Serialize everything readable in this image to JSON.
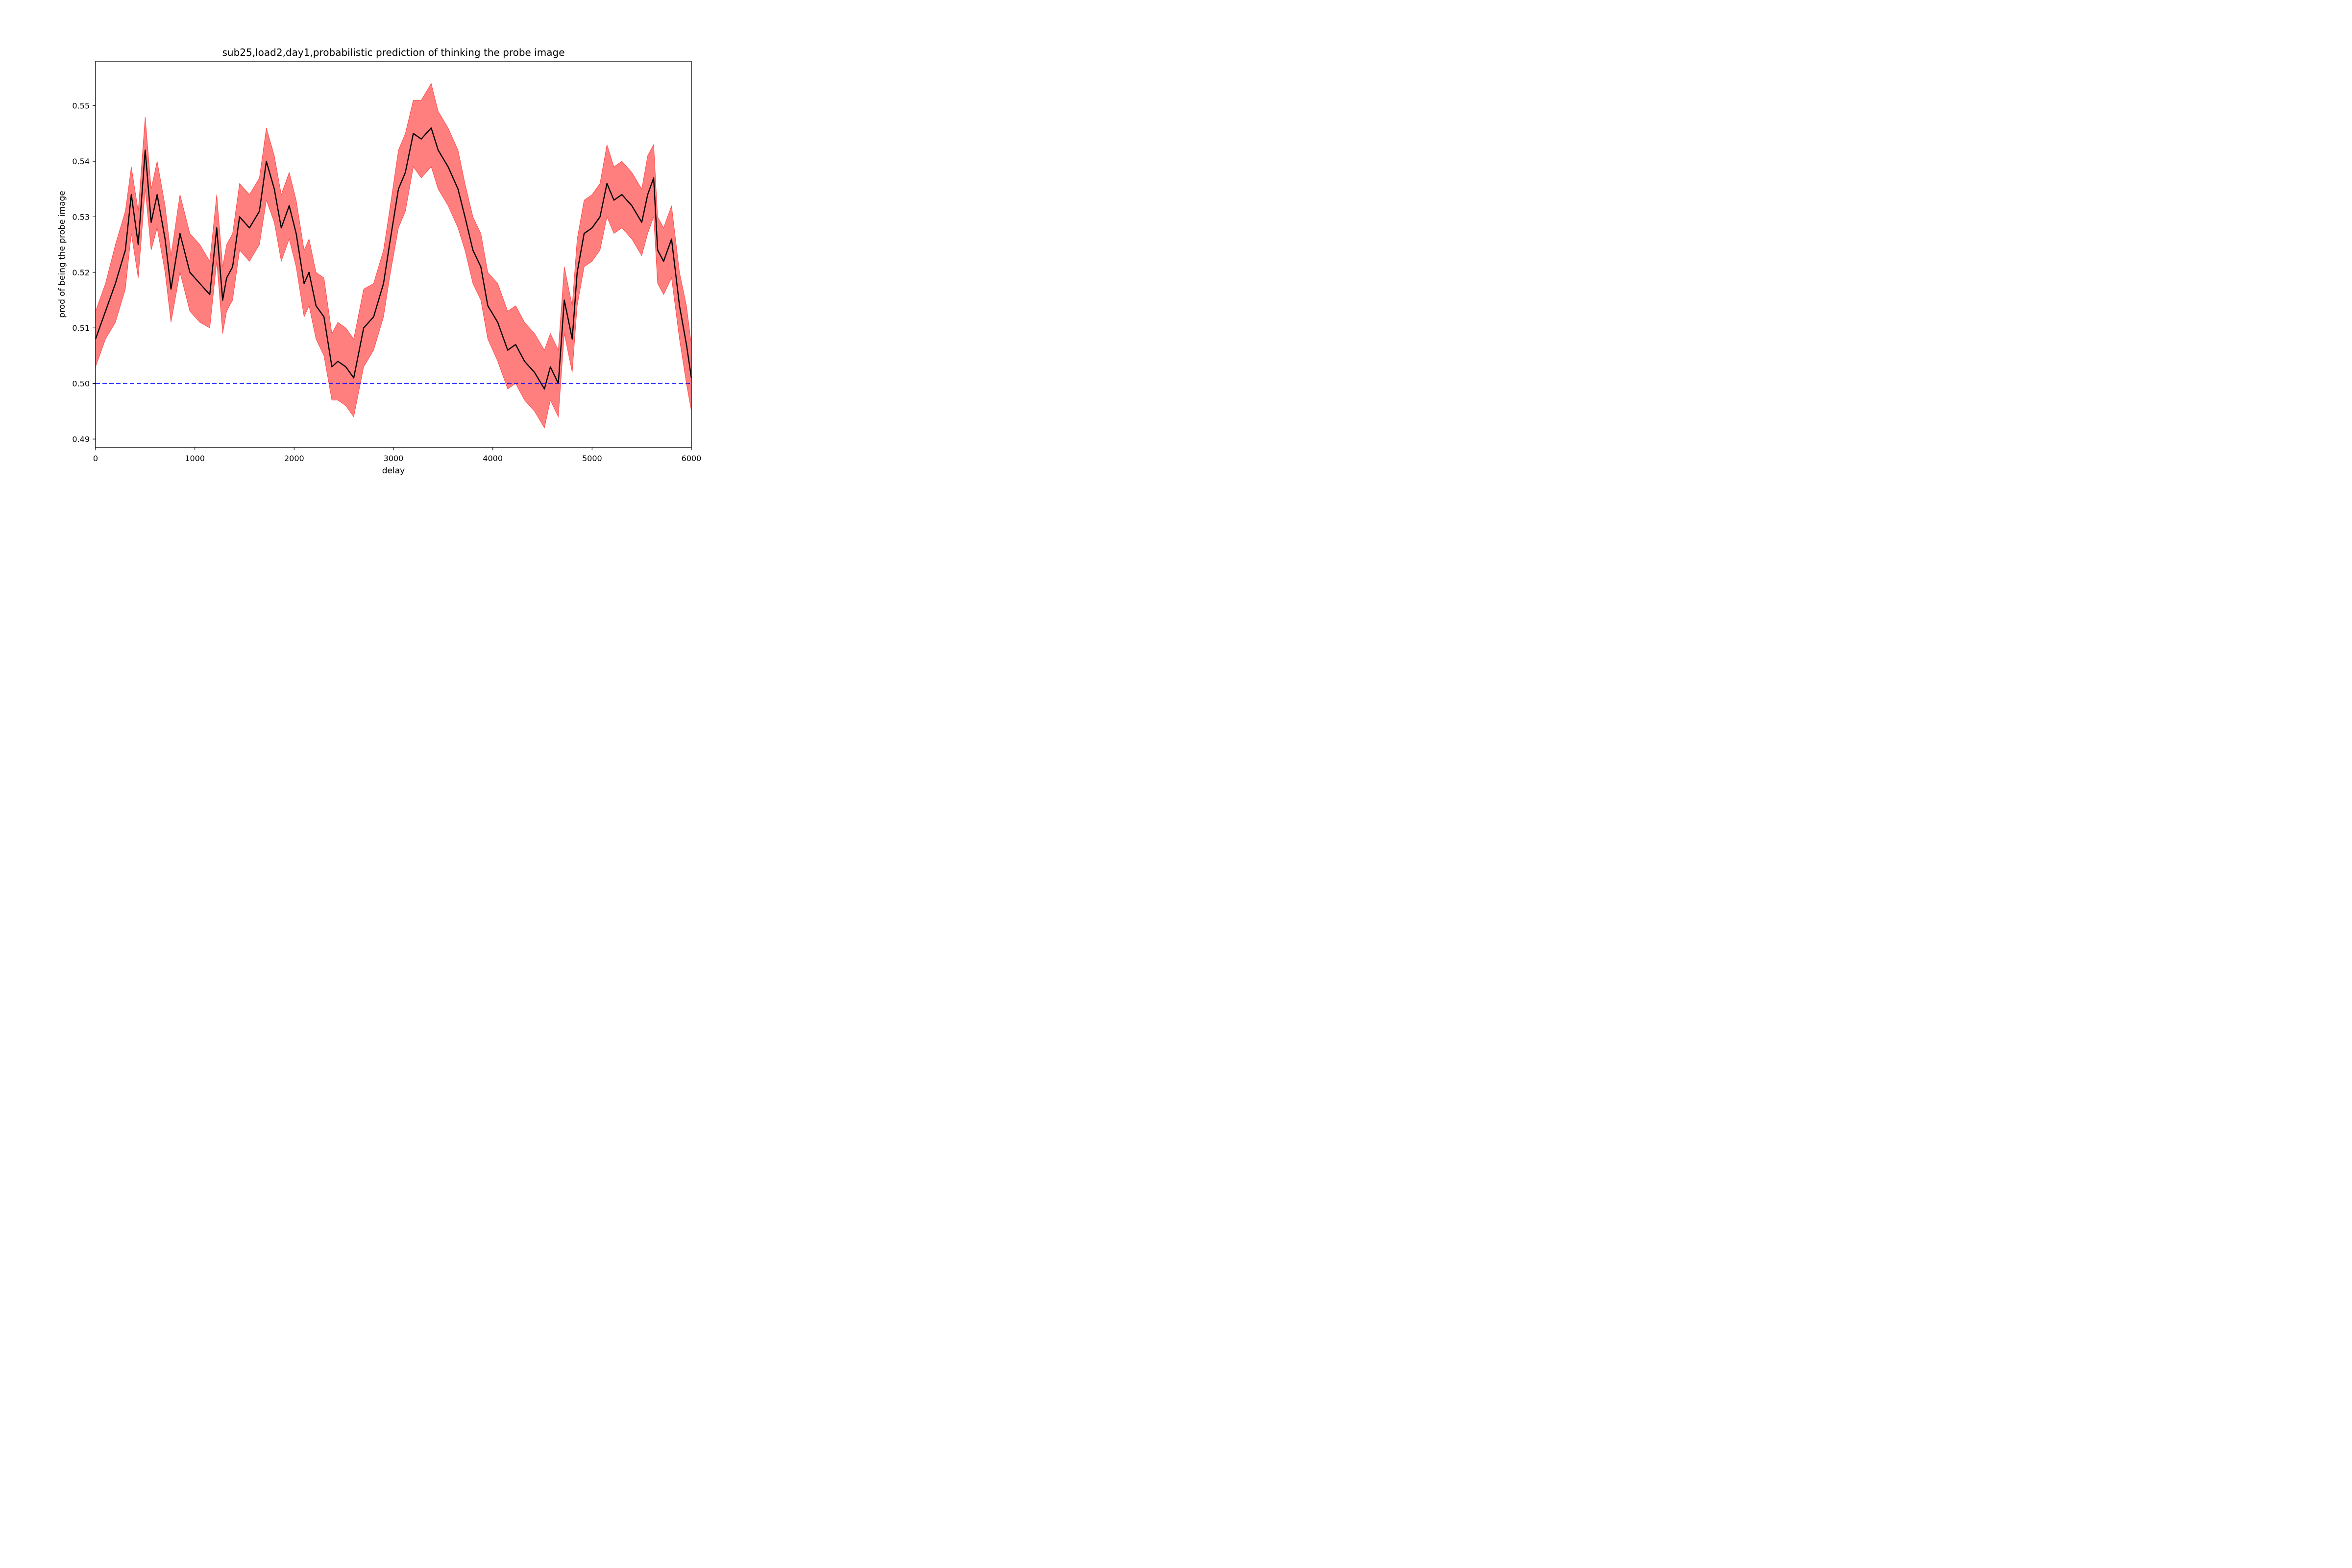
{
  "chart_data": {
    "type": "line",
    "title": "sub25,load2,day1,probabilistic prediction of thinking the probe image",
    "xlabel": "delay",
    "ylabel": "prod of being the probe image",
    "xlim": [
      0,
      6000
    ],
    "ylim": [
      0.4885,
      0.558
    ],
    "xticks": [
      0,
      1000,
      2000,
      3000,
      4000,
      5000,
      6000
    ],
    "xtick_labels": [
      "0",
      "1000",
      "2000",
      "3000",
      "4000",
      "5000",
      "6000"
    ],
    "yticks": [
      0.49,
      0.5,
      0.51,
      0.52,
      0.53,
      0.54,
      0.55
    ],
    "ytick_labels": [
      "0.49",
      "0.50",
      "0.51",
      "0.52",
      "0.53",
      "0.54",
      "0.55"
    ],
    "grid": false,
    "legend": "none",
    "series": [
      {
        "style": "black solid line with red translucent uncertainty band",
        "color": "#000000",
        "band_color": "#ff0000",
        "x": [
          0,
          100,
          200,
          300,
          360,
          430,
          500,
          560,
          620,
          700,
          760,
          850,
          950,
          1050,
          1150,
          1220,
          1280,
          1320,
          1380,
          1450,
          1550,
          1650,
          1720,
          1800,
          1870,
          1950,
          2020,
          2100,
          2150,
          2220,
          2300,
          2380,
          2440,
          2520,
          2600,
          2700,
          2800,
          2900,
          2960,
          3050,
          3120,
          3200,
          3280,
          3380,
          3450,
          3550,
          3650,
          3720,
          3800,
          3880,
          3950,
          4050,
          4150,
          4230,
          4320,
          4420,
          4520,
          4580,
          4660,
          4720,
          4800,
          4850,
          4920,
          5000,
          5080,
          5150,
          5220,
          5300,
          5400,
          5500,
          5560,
          5620,
          5660,
          5720,
          5800,
          5880,
          5950,
          6000
        ],
        "values": [
          0.508,
          0.513,
          0.518,
          0.524,
          0.534,
          0.525,
          0.542,
          0.529,
          0.534,
          0.526,
          0.517,
          0.527,
          0.52,
          0.518,
          0.516,
          0.528,
          0.515,
          0.519,
          0.521,
          0.53,
          0.528,
          0.531,
          0.54,
          0.535,
          0.528,
          0.532,
          0.527,
          0.518,
          0.52,
          0.514,
          0.512,
          0.503,
          0.504,
          0.503,
          0.501,
          0.51,
          0.512,
          0.518,
          0.525,
          0.535,
          0.538,
          0.545,
          0.544,
          0.546,
          0.542,
          0.539,
          0.535,
          0.53,
          0.524,
          0.521,
          0.514,
          0.511,
          0.506,
          0.507,
          0.504,
          0.502,
          0.499,
          0.503,
          0.5,
          0.515,
          0.508,
          0.52,
          0.527,
          0.528,
          0.53,
          0.536,
          0.533,
          0.534,
          0.532,
          0.529,
          0.534,
          0.537,
          0.524,
          0.522,
          0.526,
          0.514,
          0.507,
          0.501
        ],
        "band_low": [
          0.503,
          0.508,
          0.511,
          0.517,
          0.527,
          0.519,
          0.535,
          0.524,
          0.528,
          0.52,
          0.511,
          0.52,
          0.513,
          0.511,
          0.51,
          0.522,
          0.509,
          0.513,
          0.515,
          0.524,
          0.522,
          0.525,
          0.533,
          0.529,
          0.522,
          0.526,
          0.521,
          0.512,
          0.514,
          0.508,
          0.505,
          0.497,
          0.497,
          0.496,
          0.494,
          0.503,
          0.506,
          0.512,
          0.519,
          0.528,
          0.531,
          0.539,
          0.537,
          0.539,
          0.535,
          0.532,
          0.528,
          0.524,
          0.518,
          0.515,
          0.508,
          0.504,
          0.499,
          0.5,
          0.497,
          0.495,
          0.492,
          0.497,
          0.494,
          0.509,
          0.502,
          0.514,
          0.521,
          0.522,
          0.524,
          0.53,
          0.527,
          0.528,
          0.526,
          0.523,
          0.527,
          0.53,
          0.518,
          0.516,
          0.519,
          0.508,
          0.5,
          0.495
        ],
        "band_high": [
          0.513,
          0.518,
          0.525,
          0.531,
          0.539,
          0.531,
          0.548,
          0.535,
          0.54,
          0.532,
          0.523,
          0.534,
          0.527,
          0.525,
          0.522,
          0.534,
          0.521,
          0.525,
          0.527,
          0.536,
          0.534,
          0.537,
          0.546,
          0.541,
          0.534,
          0.538,
          0.533,
          0.524,
          0.526,
          0.52,
          0.519,
          0.509,
          0.511,
          0.51,
          0.508,
          0.517,
          0.518,
          0.524,
          0.531,
          0.542,
          0.545,
          0.551,
          0.551,
          0.554,
          0.549,
          0.546,
          0.542,
          0.536,
          0.53,
          0.527,
          0.52,
          0.518,
          0.513,
          0.514,
          0.511,
          0.509,
          0.506,
          0.509,
          0.506,
          0.521,
          0.514,
          0.526,
          0.533,
          0.534,
          0.536,
          0.543,
          0.539,
          0.54,
          0.538,
          0.535,
          0.541,
          0.543,
          0.53,
          0.528,
          0.532,
          0.52,
          0.514,
          0.507
        ]
      }
    ],
    "reference_line": {
      "y": 0.5,
      "style": "dashed",
      "color": "#0000ff"
    }
  }
}
